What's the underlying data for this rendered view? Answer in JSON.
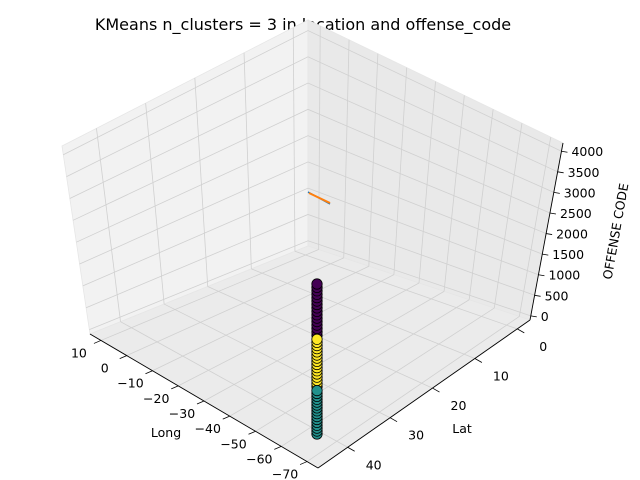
{
  "chart_data": {
    "type": "scatter",
    "title": "KMeans n_clusters = 3 in location and offense_code",
    "projection": "3d",
    "grid": true,
    "axes": {
      "x": {
        "label": "Long",
        "ticks": [
          "10",
          "0",
          "−10",
          "−20",
          "−30",
          "−40",
          "−50",
          "−60",
          "−70"
        ]
      },
      "y": {
        "label": "Lat",
        "ticks": [
          "0",
          "10",
          "20",
          "30",
          "40"
        ]
      },
      "z": {
        "label": "OFFENSE CODE",
        "ticks": [
          "0",
          "500",
          "1000",
          "1500",
          "2000",
          "2500",
          "3000",
          "3500",
          "4000"
        ]
      }
    },
    "series": [
      {
        "color": "#440154",
        "x_long": -71.06,
        "y_lat": 42.33,
        "z_range": [
          2600,
          3900
        ]
      },
      {
        "color": "#fde725",
        "x_long": -71.06,
        "y_lat": 42.33,
        "z_range": [
          1300,
          2500
        ]
      },
      {
        "color": "#21918c",
        "x_long": -71.06,
        "y_lat": 42.33,
        "z_range": [
          100,
          1200
        ]
      }
    ],
    "marker_edge_color": "#000000",
    "line_segment": {
      "color": "#ff7f0e",
      "secondary_color": "#1f77b4"
    }
  }
}
